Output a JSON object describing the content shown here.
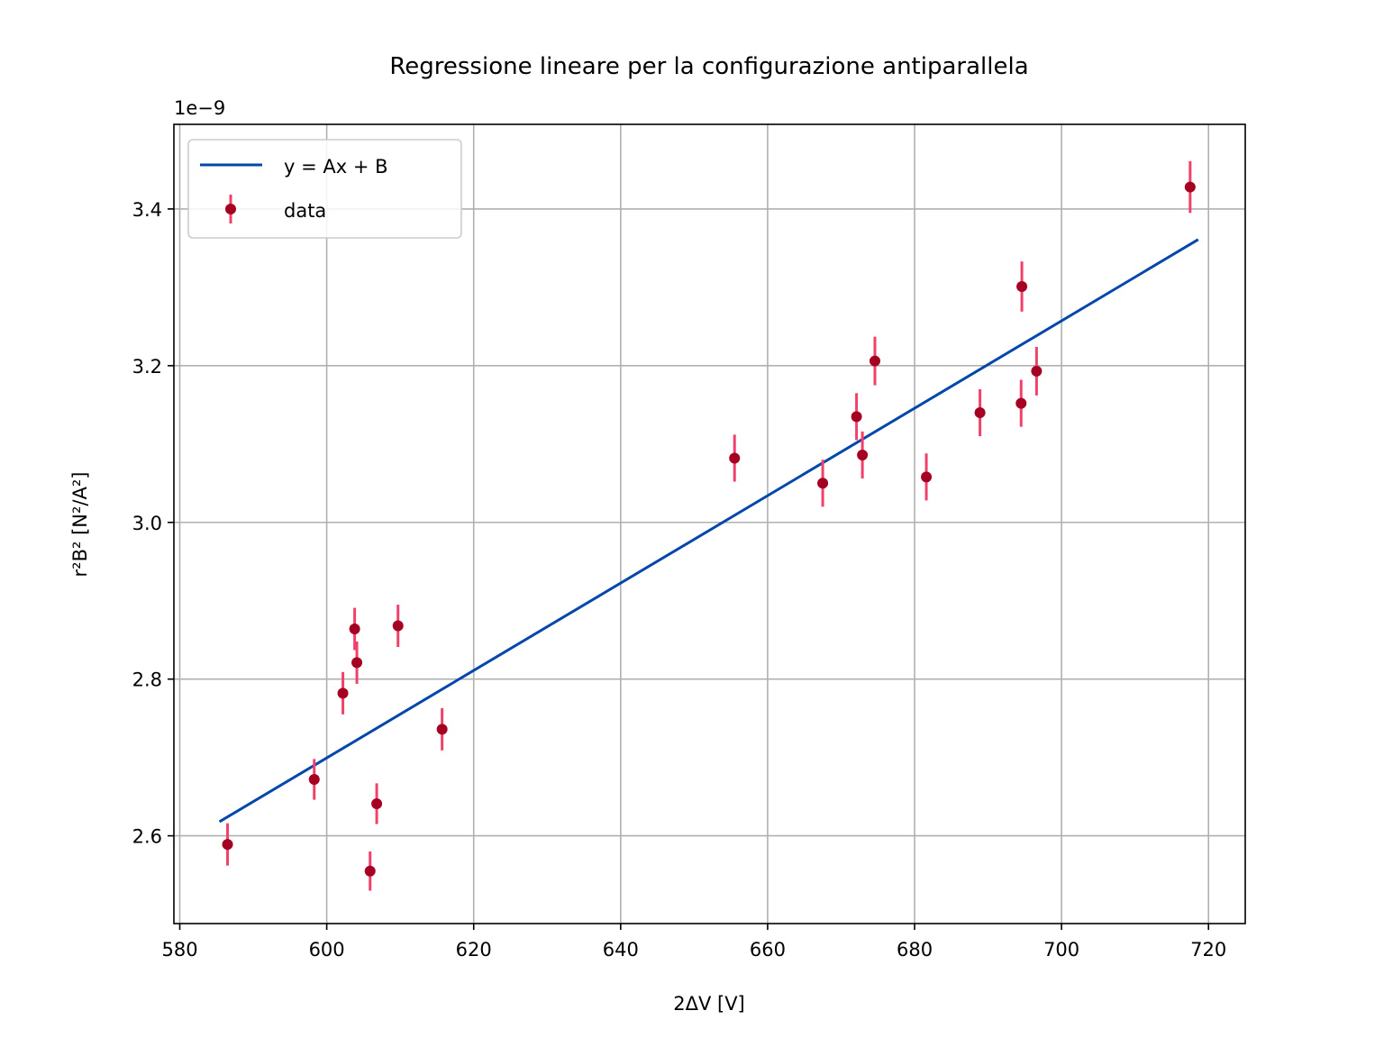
{
  "chart_data": {
    "type": "scatter",
    "title": "Regressione lineare per la configurazione antiparallela",
    "xlabel": "2ΔV [V]",
    "ylabel": "r²B² [N²/A²]",
    "y_offset_label": "1e−9",
    "xlim": [
      579.2,
      725.0
    ],
    "ylim": [
      2.488,
      3.508
    ],
    "x_ticks": [
      580,
      600,
      620,
      640,
      660,
      680,
      700,
      720
    ],
    "x_tick_labels": [
      "580",
      "600",
      "620",
      "640",
      "660",
      "680",
      "700",
      "720"
    ],
    "y_ticks": [
      2.6,
      2.8,
      3.0,
      3.2,
      3.4
    ],
    "y_tick_labels": [
      "2.6",
      "2.8",
      "3.0",
      "3.2",
      "3.4"
    ],
    "grid": true,
    "legend_position": "top-left",
    "series": [
      {
        "name": "y = Ax + B",
        "kind": "line",
        "color": "#0047AB",
        "x": [
          585.4,
          718.6
        ],
        "y": [
          2.618,
          3.361
        ]
      },
      {
        "name": "data",
        "kind": "errorbar",
        "color": "#A50021",
        "error_color": "#F0416A",
        "points": [
          {
            "x": 586.5,
            "y": 2.589,
            "err": 0.027
          },
          {
            "x": 598.3,
            "y": 2.672,
            "err": 0.026
          },
          {
            "x": 602.2,
            "y": 2.782,
            "err": 0.027
          },
          {
            "x": 603.8,
            "y": 2.864,
            "err": 0.027
          },
          {
            "x": 604.1,
            "y": 2.821,
            "err": 0.027
          },
          {
            "x": 605.9,
            "y": 2.555,
            "err": 0.025
          },
          {
            "x": 606.8,
            "y": 2.641,
            "err": 0.026
          },
          {
            "x": 609.7,
            "y": 2.868,
            "err": 0.027
          },
          {
            "x": 615.7,
            "y": 2.736,
            "err": 0.027
          },
          {
            "x": 655.5,
            "y": 3.082,
            "err": 0.03
          },
          {
            "x": 667.5,
            "y": 3.05,
            "err": 0.03
          },
          {
            "x": 672.1,
            "y": 3.135,
            "err": 0.03
          },
          {
            "x": 672.9,
            "y": 3.086,
            "err": 0.03
          },
          {
            "x": 674.6,
            "y": 3.206,
            "err": 0.031
          },
          {
            "x": 681.6,
            "y": 3.058,
            "err": 0.03
          },
          {
            "x": 688.9,
            "y": 3.14,
            "err": 0.03
          },
          {
            "x": 694.5,
            "y": 3.152,
            "err": 0.03
          },
          {
            "x": 694.6,
            "y": 3.301,
            "err": 0.032
          },
          {
            "x": 696.6,
            "y": 3.193,
            "err": 0.031
          },
          {
            "x": 717.5,
            "y": 3.428,
            "err": 0.033
          }
        ]
      }
    ]
  }
}
